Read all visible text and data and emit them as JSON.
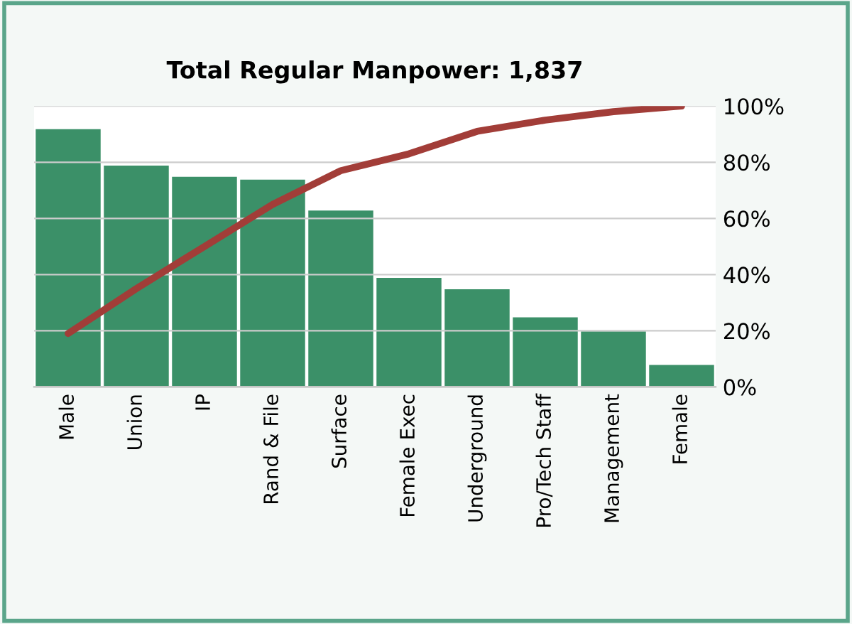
{
  "chart_data": {
    "type": "bar",
    "title": "Total Regular Manpower: 1,837",
    "categories": [
      "Male",
      "Union",
      "IP",
      "Rand & File",
      "Surface",
      "Female Exec",
      "Underground",
      "Pro/Tech Staff",
      "Management",
      "Female"
    ],
    "grid": "y",
    "series": [
      {
        "color": "#3b9068",
        "values": [
          92,
          79,
          75,
          74,
          63,
          39,
          35,
          25,
          20,
          8
        ]
      },
      {
        "type": "line",
        "color": "#a23d38",
        "values": [
          19,
          35,
          50,
          65,
          77,
          83,
          91,
          95,
          98,
          100
        ]
      }
    ],
    "ylim": [
      0,
      100
    ],
    "yticks": [
      {
        "value": 0,
        "label": "0%"
      },
      {
        "value": 20,
        "label": "20%"
      },
      {
        "value": 40,
        "label": "40%"
      },
      {
        "value": 60,
        "label": "60%"
      },
      {
        "value": 80,
        "label": "80%"
      },
      {
        "value": 100,
        "label": "100%"
      }
    ]
  }
}
